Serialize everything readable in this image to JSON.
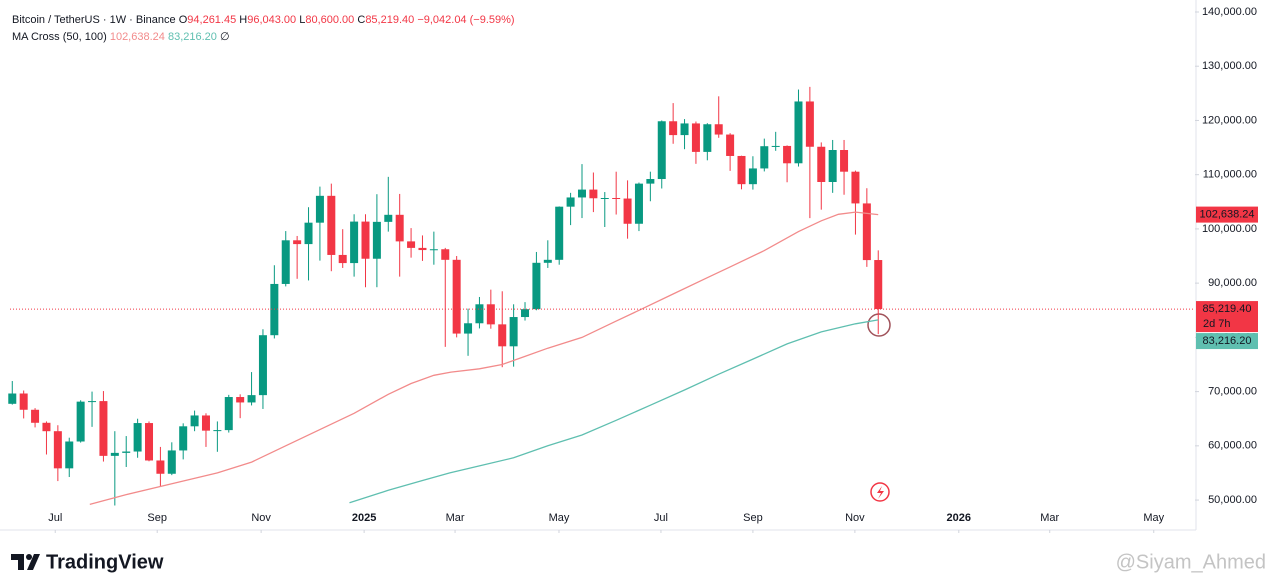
{
  "chart_data": {
    "type": "candlestick",
    "title": "Bitcoin / TetherUS · 1W · Binance",
    "ohlc_header": [
      {
        "label": "O",
        "value": "94,261.45"
      },
      {
        "label": "H",
        "value": "96,043.00"
      },
      {
        "label": "L",
        "value": "80,600.00"
      },
      {
        "label": "C",
        "value": "85,219.40"
      }
    ],
    "change": "−9,042.04 (−9.59%)",
    "indicator": "MA Cross (50, 100)",
    "up_color": "#089981",
    "down_color": "#f23645",
    "open": [
      67750,
      69650,
      66650,
      64250,
      62700,
      55850,
      60800,
      68150,
      68250,
      58150,
      58700,
      58950,
      64200,
      57300,
      54850,
      59150,
      63600,
      65600,
      62800,
      62900,
      69000,
      68000,
      69350,
      80400,
      89850,
      97900,
      97200,
      101150,
      106100,
      95200,
      93700,
      101350,
      94500,
      101300,
      102600,
      97700,
      96500,
      96100,
      96250,
      94300,
      80700,
      82600,
      86100,
      82400,
      78350,
      83750,
      85200,
      93750,
      94300,
      104100,
      105800,
      107250,
      105650,
      105700,
      105600,
      100950,
      108350,
      109200,
      119850,
      117300,
      119450,
      114200,
      119300,
      117400,
      113450,
      108250,
      111150,
      115250,
      115300,
      112100,
      123500,
      115150,
      108650,
      114550,
      110550,
      104700,
      94261.45
    ],
    "high": [
      71950,
      70200,
      66950,
      64500,
      63800,
      61500,
      68400,
      70000,
      70100,
      62700,
      61800,
      65000,
      64500,
      59800,
      60650,
      64150,
      66500,
      66000,
      64500,
      69400,
      69500,
      73600,
      81500,
      93300,
      99600,
      98700,
      104000,
      107800,
      108350,
      99950,
      102700,
      102700,
      106400,
      109600,
      106450,
      100150,
      98800,
      99500,
      96500,
      95000,
      85300,
      87450,
      88800,
      88500,
      86100,
      86500,
      95750,
      97900,
      104150,
      106650,
      111950,
      110400,
      106800,
      110550,
      108950,
      108550,
      110550,
      120000,
      123200,
      120250,
      119800,
      119500,
      124450,
      117650,
      113500,
      113400,
      116650,
      117900,
      115400,
      125700,
      126200,
      115950,
      116400,
      116400,
      110750,
      107500,
      96043
    ],
    "low": [
      67600,
      65050,
      63400,
      58400,
      53500,
      54250,
      60600,
      63500,
      57100,
      49000,
      56100,
      57800,
      57150,
      52550,
      54600,
      57500,
      62700,
      59800,
      58900,
      62450,
      65100,
      67450,
      66800,
      79800,
      89400,
      90800,
      90500,
      94150,
      92200,
      92800,
      91200,
      89250,
      89250,
      99500,
      91200,
      94700,
      94100,
      93400,
      78250,
      80000,
      76600,
      81650,
      81600,
      74500,
      74600,
      83100,
      85000,
      92800,
      93400,
      100700,
      102000,
      103100,
      100350,
      102650,
      98200,
      99600,
      105100,
      107450,
      115700,
      114700,
      112000,
      112650,
      116800,
      110700,
      107300,
      107250,
      110600,
      114400,
      108600,
      111500,
      102000,
      103550,
      106650,
      106300,
      98950,
      93000,
      80600
    ],
    "close": [
      69650,
      66650,
      64250,
      62700,
      55850,
      60800,
      68150,
      68250,
      58150,
      58700,
      58950,
      64200,
      57300,
      54850,
      59150,
      63600,
      65600,
      62800,
      62900,
      69000,
      68000,
      69350,
      80400,
      89850,
      97900,
      97200,
      101150,
      106100,
      95200,
      93700,
      101350,
      94500,
      101300,
      102600,
      97700,
      96500,
      96100,
      96250,
      94300,
      80700,
      82600,
      86100,
      82400,
      78350,
      83750,
      85200,
      93750,
      94300,
      104100,
      105800,
      107250,
      105650,
      105700,
      105600,
      100950,
      108350,
      109200,
      119850,
      117300,
      119450,
      114200,
      119300,
      117400,
      113450,
      108250,
      111150,
      115250,
      115300,
      112100,
      123500,
      115150,
      108650,
      114550,
      110550,
      104700,
      94250,
      85219.4
    ],
    "price_label": "85,219.40",
    "countdown": "2d 7h",
    "series": [
      {
        "color": "#f28b8b",
        "value_label": "102,638.24",
        "x": [
          6.8,
          10,
          14,
          18,
          21,
          24,
          27,
          30,
          33,
          35,
          37,
          38.5,
          41,
          43,
          45,
          47,
          50,
          53,
          55,
          58,
          61,
          63,
          66,
          69,
          71,
          72.5,
          74,
          76
        ],
        "values": [
          49200,
          51000,
          53000,
          55000,
          57000,
          60000,
          63000,
          66000,
          69500,
          71500,
          73000,
          73600,
          74200,
          75000,
          76500,
          78000,
          80000,
          83000,
          85000,
          88000,
          91000,
          93000,
          96000,
          99500,
          101500,
          102700,
          103100,
          102638.24
        ]
      },
      {
        "color": "#5fbfb0",
        "value_label": "83,216.20",
        "x": [
          29.6,
          33,
          36,
          38.4,
          41,
          44,
          47,
          50,
          53,
          56,
          59,
          62,
          65,
          68,
          71,
          74,
          76
        ],
        "values": [
          49500,
          51800,
          53600,
          55000,
          56300,
          57800,
          60000,
          62000,
          64700,
          67500,
          70300,
          73200,
          76000,
          78800,
          81000,
          82500,
          83216.2
        ]
      }
    ],
    "xlim": [
      -0.2,
      103.8
    ],
    "xticks": [
      {
        "value": 3.77,
        "label": "Jul"
      },
      {
        "value": 12.72,
        "label": "Sep"
      },
      {
        "value": 21.84,
        "label": "Nov"
      },
      {
        "value": 30.88,
        "label": "2025"
      },
      {
        "value": 38.86,
        "label": "Mar"
      },
      {
        "value": 47.98,
        "label": "May"
      },
      {
        "value": 56.93,
        "label": "Jul"
      },
      {
        "value": 65.0,
        "label": "Sep"
      },
      {
        "value": 73.95,
        "label": "Nov"
      },
      {
        "value": 83.07,
        "label": "2026"
      },
      {
        "value": 91.05,
        "label": "Mar"
      },
      {
        "value": 100.18,
        "label": "May"
      }
    ],
    "ylim": [
      44480,
      142210
    ],
    "yticks": [
      {
        "value": 50000,
        "label": "50,000.00"
      },
      {
        "value": 60000,
        "label": "60,000.00"
      },
      {
        "value": 70000,
        "label": "70,000.00"
      },
      {
        "value": 80000,
        "label": "80,000.00"
      },
      {
        "value": 90000,
        "label": "90,000.00"
      },
      {
        "value": 100000,
        "label": "100,000.00"
      },
      {
        "value": 110000,
        "label": "110,000.00"
      },
      {
        "value": 120000,
        "label": "120,000.00"
      },
      {
        "value": 130000,
        "label": "130,000.00"
      },
      {
        "value": 140000,
        "label": "140,000.00"
      }
    ],
    "grid": false
  },
  "footer": {
    "brand": "TradingView",
    "watermark": "@Siyam_Ahmed"
  }
}
